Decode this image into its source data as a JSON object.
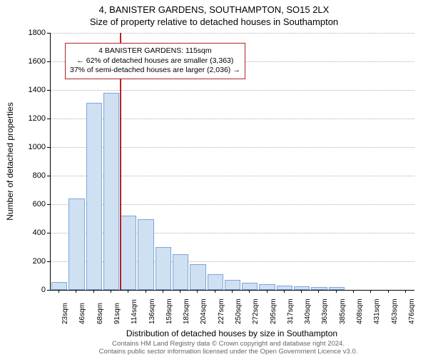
{
  "title": {
    "line1": "4, BANISTER GARDENS, SOUTHAMPTON, SO15 2LX",
    "line2": "Size of property relative to detached houses in Southampton"
  },
  "chart": {
    "type": "histogram",
    "ylabel": "Number of detached properties",
    "xlabel": "Distribution of detached houses by size in Southampton",
    "ylim_max": 1800,
    "ytick_step": 200,
    "bar_fill": "#cfe0f3",
    "bar_stroke": "#7ea6d6",
    "grid_color": "#b0b0b0",
    "background": "#ffffff",
    "ref_line_color": "#b22222",
    "ref_line_x_index": 4,
    "categories": [
      "23sqm",
      "46sqm",
      "68sqm",
      "91sqm",
      "114sqm",
      "136sqm",
      "159sqm",
      "182sqm",
      "204sqm",
      "227sqm",
      "250sqm",
      "272sqm",
      "295sqm",
      "317sqm",
      "340sqm",
      "363sqm",
      "385sqm",
      "408sqm",
      "431sqm",
      "453sqm",
      "476sqm"
    ],
    "values": [
      55,
      640,
      1310,
      1380,
      520,
      495,
      300,
      250,
      180,
      110,
      70,
      50,
      40,
      30,
      25,
      20,
      18,
      0,
      0,
      0,
      0
    ],
    "annotation": {
      "line1": "4 BANISTER GARDENS: 115sqm",
      "line2": "← 62% of detached houses are smaller (3,363)",
      "line3": "37% of semi-detached houses are larger (2,036) →"
    }
  },
  "footer": {
    "line1": "Contains HM Land Registry data © Crown copyright and database right 2024.",
    "line2": "Contains public sector information licensed under the Open Government Licence v3.0."
  }
}
